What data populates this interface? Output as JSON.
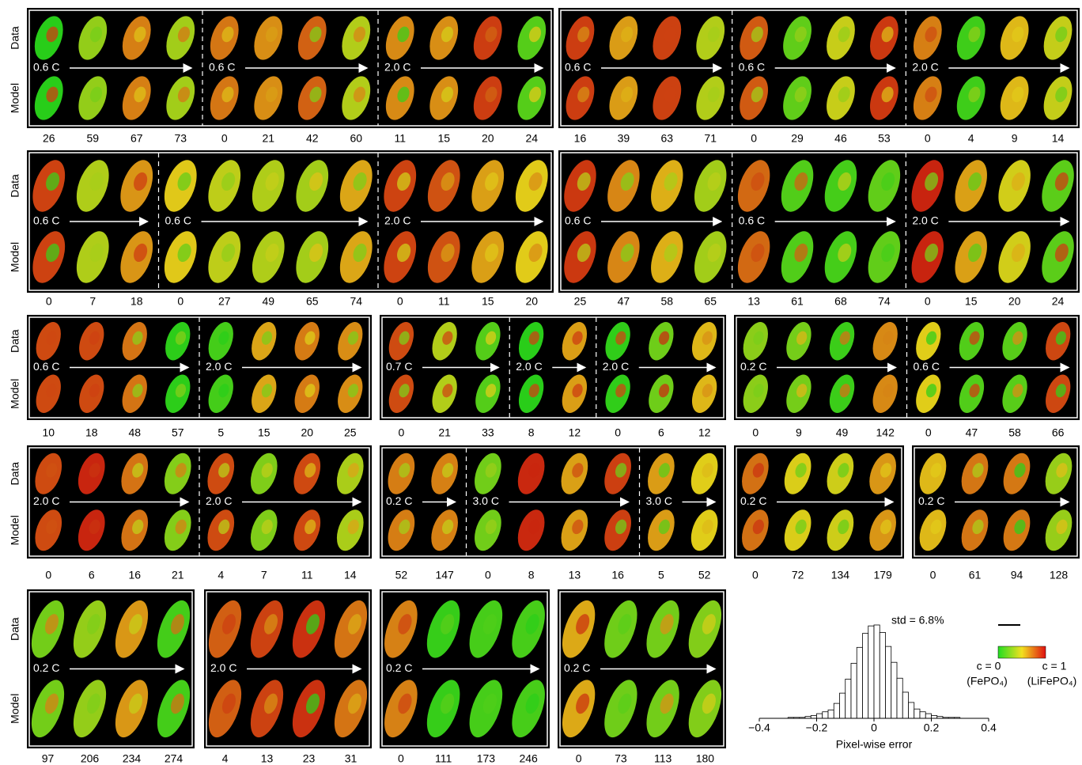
{
  "row_labels": {
    "data": "Data",
    "model": "Model"
  },
  "panels": [
    [
      {
        "groups": [
          {
            "rate": "0.6 C",
            "times": [
              26,
              59,
              67,
              73
            ]
          },
          {
            "rate": "0.6 C",
            "times": [
              0,
              21,
              42,
              60
            ]
          },
          {
            "rate": "2.0 C",
            "times": [
              11,
              15,
              20,
              24
            ]
          }
        ]
      },
      {
        "groups": [
          {
            "rate": "0.6 C",
            "times": [
              16,
              39,
              63,
              71
            ]
          },
          {
            "rate": "0.6 C",
            "times": [
              0,
              29,
              46,
              53
            ]
          },
          {
            "rate": "2.0 C",
            "times": [
              0,
              4,
              9,
              14
            ]
          }
        ]
      }
    ],
    [
      {
        "groups": [
          {
            "rate": "0.6 C",
            "times": [
              0,
              7,
              18
            ]
          },
          {
            "rate": "0.6 C",
            "times": [
              0,
              27,
              49,
              65,
              74
            ]
          },
          {
            "rate": "2.0 C",
            "times": [
              0,
              11,
              15,
              20
            ]
          }
        ]
      },
      {
        "groups": [
          {
            "rate": "0.6 C",
            "times": [
              25,
              47,
              58,
              65
            ]
          },
          {
            "rate": "0.6 C",
            "times": [
              13,
              61,
              68,
              74
            ]
          },
          {
            "rate": "2.0 C",
            "times": [
              0,
              15,
              20,
              24
            ]
          }
        ]
      }
    ],
    [
      {
        "groups": [
          {
            "rate": "0.6 C",
            "times": [
              10,
              18,
              48,
              57
            ]
          },
          {
            "rate": "2.0 C",
            "times": [
              5,
              15,
              20,
              25
            ]
          }
        ]
      },
      {
        "groups": [
          {
            "rate": "0.7 C",
            "times": [
              0,
              21,
              33
            ]
          },
          {
            "rate": "2.0 C",
            "times": [
              8,
              12
            ]
          },
          {
            "rate": "2.0 C",
            "times": [
              0,
              6,
              12
            ]
          }
        ]
      },
      {
        "groups": [
          {
            "rate": "0.2 C",
            "times": [
              0,
              9,
              49,
              142
            ]
          },
          {
            "rate": "0.6 C",
            "times": [
              0,
              47,
              58,
              66
            ]
          }
        ]
      }
    ],
    [
      {
        "groups": [
          {
            "rate": "2.0 C",
            "times": [
              0,
              6,
              16,
              21
            ]
          },
          {
            "rate": "2.0 C",
            "times": [
              4,
              7,
              11,
              14
            ]
          }
        ]
      },
      {
        "groups": [
          {
            "rate": "0.2 C",
            "times": [
              52,
              147
            ]
          },
          {
            "rate": "3.0 C",
            "times": [
              0,
              8,
              13,
              16
            ]
          },
          {
            "rate": "3.0 C",
            "times": [
              5,
              52
            ]
          }
        ]
      },
      {
        "groups": [
          {
            "rate": "0.2 C",
            "times": [
              0,
              72,
              134,
              179
            ]
          }
        ]
      },
      {
        "groups": [
          {
            "rate": "0.2 C",
            "times": [
              0,
              61,
              94,
              128
            ]
          }
        ]
      }
    ],
    [
      {
        "groups": [
          {
            "rate": "0.2 C",
            "times": [
              97,
              206,
              234,
              274
            ]
          }
        ]
      },
      {
        "groups": [
          {
            "rate": "2.0 C",
            "times": [
              4,
              13,
              23,
              31
            ]
          }
        ]
      },
      {
        "groups": [
          {
            "rate": "0.2 C",
            "times": [
              0,
              111,
              173,
              246
            ]
          }
        ]
      },
      {
        "groups": [
          {
            "rate": "0.2 C",
            "times": [
              0,
              73,
              113,
              180
            ]
          }
        ]
      }
    ]
  ],
  "chart_data": {
    "type": "histogram",
    "annotation": "std = 6.8%",
    "xlabel": "Pixel-wise error",
    "bins": [
      -0.4,
      -0.38,
      -0.36,
      -0.34,
      -0.32,
      -0.3,
      -0.28,
      -0.26,
      -0.24,
      -0.22,
      -0.2,
      -0.18,
      -0.16,
      -0.14,
      -0.12,
      -0.1,
      -0.08,
      -0.06,
      -0.04,
      -0.02,
      0,
      0.02,
      0.04,
      0.06,
      0.08,
      0.1,
      0.12,
      0.14,
      0.16,
      0.18,
      0.2,
      0.22,
      0.24,
      0.26,
      0.28,
      0.3,
      0.32,
      0.34,
      0.36,
      0.38,
      0.4
    ],
    "values": [
      0,
      0,
      0,
      0,
      0,
      1,
      1,
      1,
      2,
      3,
      5,
      7,
      9,
      16,
      27,
      42,
      59,
      76,
      91,
      99,
      100,
      92,
      77,
      60,
      43,
      28,
      17,
      10,
      7,
      5,
      3,
      2,
      1,
      1,
      1,
      0,
      0,
      0,
      0,
      0
    ],
    "color": "#ffffff",
    "xlim": [
      -0.4,
      0.4
    ],
    "xticks": [
      {
        "value": -0.4,
        "label": "−0.4"
      },
      {
        "value": -0.2,
        "label": "−0.2"
      },
      0,
      0.2,
      0.4
    ]
  },
  "colorbar": {
    "low_label": "c = 0",
    "low_name": "(FePO₄)",
    "high_label": "c = 1",
    "high_name": "(LiFePO₄)"
  }
}
